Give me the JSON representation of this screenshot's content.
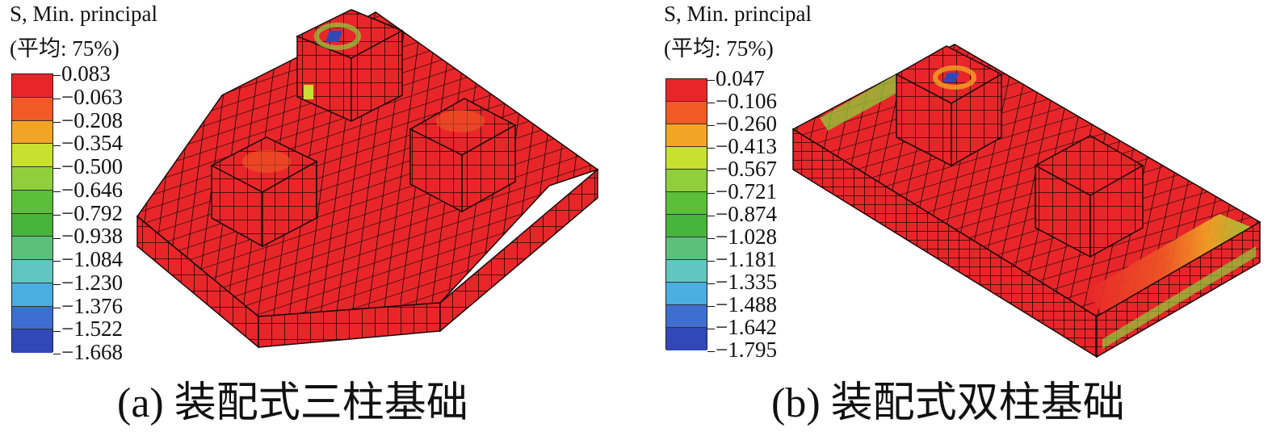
{
  "panels": [
    {
      "legend": {
        "title": "S, Min. principal",
        "subtitle": "(平均: 75%)",
        "values": [
          "0.083",
          "−0.063",
          "−0.208",
          "−0.354",
          "−0.500",
          "−0.646",
          "−0.792",
          "−0.938",
          "−1.084",
          "−1.230",
          "−1.376",
          "−1.522",
          "−1.668"
        ]
      },
      "caption": "(a) 装配式三柱基础"
    },
    {
      "legend": {
        "title": "S, Min. principal",
        "subtitle": "(平均: 75%)",
        "values": [
          "0.047",
          "−0.106",
          "−0.260",
          "−0.413",
          "−0.567",
          "−0.721",
          "−0.874",
          "−1.028",
          "−1.181",
          "−1.335",
          "−1.488",
          "−1.642",
          "−1.795"
        ]
      },
      "caption": "(b) 装配式双柱基础"
    }
  ],
  "colors": {
    "scale": [
      "#e8262a",
      "#ef5a25",
      "#f2a524",
      "#c8e02f",
      "#8fd03a",
      "#5bbf3a",
      "#47b43b",
      "#5cc07a",
      "#62c6c0",
      "#4aaee0",
      "#3e6fd0",
      "#3148b8"
    ],
    "mesh_red": "#e8262a",
    "mesh_line": "#1a0a0a"
  }
}
